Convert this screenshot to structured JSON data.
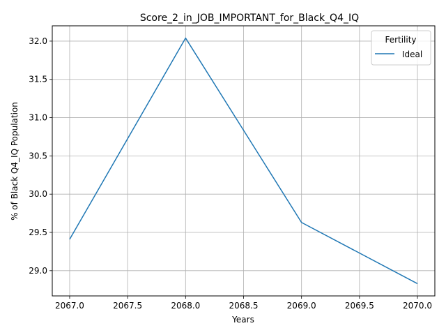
{
  "chart_data": {
    "type": "line",
    "title": "Score_2_in_JOB_IMPORTANT_for_Black_Q4_IQ",
    "xlabel": "Years",
    "ylabel": "% of Black Q4_IQ Population",
    "xlim": [
      2066.85,
      2070.15
    ],
    "ylim": [
      28.67,
      32.2
    ],
    "x_ticks": [
      2067.0,
      2067.5,
      2068.0,
      2068.5,
      2069.0,
      2069.5,
      2070.0
    ],
    "x_tick_labels": [
      "2067.0",
      "2067.5",
      "2068.0",
      "2068.5",
      "2069.0",
      "2069.5",
      "2070.0"
    ],
    "y_ticks": [
      29.0,
      29.5,
      30.0,
      30.5,
      31.0,
      31.5,
      32.0
    ],
    "y_tick_labels": [
      "29.0",
      "29.5",
      "30.0",
      "30.5",
      "31.0",
      "31.5",
      "32.0"
    ],
    "grid": true,
    "legend": {
      "title": "Fertility",
      "placement": "top-right"
    },
    "series": [
      {
        "name": "Ideal",
        "color": "#1f77b4",
        "x": [
          2067,
          2068,
          2069,
          2070
        ],
        "y": [
          29.41,
          32.04,
          29.63,
          28.83
        ]
      }
    ]
  }
}
